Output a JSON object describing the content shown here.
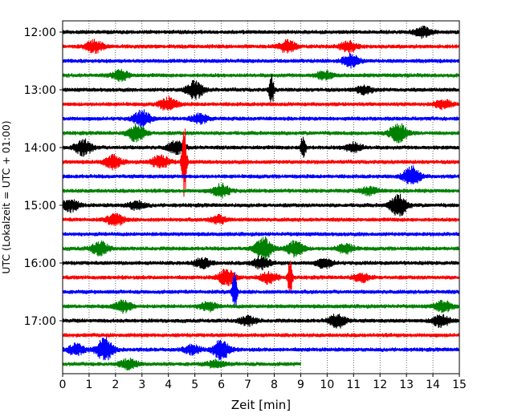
{
  "chart_data": {
    "type": "line",
    "title": "",
    "xlabel": "Zeit  [min]",
    "ylabel": "UTC (Lokalzeit = UTC + 01:00)",
    "xlim": [
      0,
      15
    ],
    "x_ticks": [
      0,
      1,
      2,
      3,
      4,
      5,
      6,
      7,
      8,
      9,
      10,
      11,
      12,
      13,
      14,
      15
    ],
    "y_tick_labels": [
      "12:00",
      "13:00",
      "14:00",
      "15:00",
      "16:00",
      "17:00"
    ],
    "grid": "vertical dotted lines at each minute",
    "legend": "none",
    "colors_cycle": [
      "#000000",
      "#ff0000",
      "#0000ff",
      "#008000"
    ],
    "traces": [
      {
        "start": "12:00",
        "color": "#000000",
        "end_min": 15,
        "events": [
          [
            13.6,
            1.0
          ]
        ]
      },
      {
        "start": "12:15",
        "color": "#ff0000",
        "end_min": 15,
        "events": [
          [
            1.2,
            1.2
          ],
          [
            8.5,
            1.2
          ],
          [
            10.8,
            1.0
          ]
        ]
      },
      {
        "start": "12:30",
        "color": "#0000ff",
        "end_min": 15,
        "events": [
          [
            10.9,
            1.3
          ]
        ]
      },
      {
        "start": "12:45",
        "color": "#008000",
        "end_min": 15,
        "events": [
          [
            2.2,
            1.0
          ],
          [
            9.9,
            0.8
          ]
        ]
      },
      {
        "start": "13:00",
        "color": "#000000",
        "end_min": 15,
        "events": [
          [
            5.0,
            1.8
          ],
          [
            7.9,
            3.2
          ],
          [
            11.4,
            0.8
          ]
        ]
      },
      {
        "start": "13:15",
        "color": "#ff0000",
        "end_min": 15,
        "events": [
          [
            4.0,
            1.4
          ],
          [
            14.4,
            0.8
          ]
        ]
      },
      {
        "start": "13:30",
        "color": "#0000ff",
        "end_min": 15,
        "events": [
          [
            3.0,
            1.6
          ],
          [
            5.2,
            0.9
          ]
        ]
      },
      {
        "start": "13:45",
        "color": "#008000",
        "end_min": 15,
        "events": [
          [
            2.8,
            1.7
          ],
          [
            12.7,
            2.0
          ]
        ]
      },
      {
        "start": "14:00",
        "color": "#000000",
        "end_min": 15,
        "events": [
          [
            0.8,
            1.6
          ],
          [
            4.3,
            1.3
          ],
          [
            9.1,
            3.0
          ],
          [
            11.0,
            0.9
          ]
        ]
      },
      {
        "start": "14:15",
        "color": "#ff0000",
        "end_min": 15,
        "events": [
          [
            1.9,
            1.3
          ],
          [
            3.7,
            1.4
          ],
          [
            4.6,
            7.5
          ]
        ]
      },
      {
        "start": "14:30",
        "color": "#0000ff",
        "end_min": 15,
        "events": [
          [
            13.2,
            2.0
          ]
        ]
      },
      {
        "start": "14:45",
        "color": "#008000",
        "end_min": 15,
        "events": [
          [
            6.0,
            1.3
          ],
          [
            11.6,
            0.8
          ]
        ]
      },
      {
        "start": "15:00",
        "color": "#000000",
        "end_min": 15,
        "events": [
          [
            0.3,
            1.2
          ],
          [
            2.8,
            0.8
          ],
          [
            12.7,
            2.2
          ]
        ]
      },
      {
        "start": "15:15",
        "color": "#ff0000",
        "end_min": 15,
        "events": [
          [
            2.0,
            1.2
          ],
          [
            5.9,
            0.8
          ]
        ]
      },
      {
        "start": "15:30",
        "color": "#0000ff",
        "end_min": 15,
        "events": []
      },
      {
        "start": "15:45",
        "color": "#008000",
        "end_min": 15,
        "events": [
          [
            1.4,
            1.4
          ],
          [
            7.6,
            2.3
          ],
          [
            8.8,
            1.6
          ],
          [
            10.7,
            0.9
          ]
        ]
      },
      {
        "start": "16:00",
        "color": "#000000",
        "end_min": 15,
        "events": [
          [
            5.3,
            1.0
          ],
          [
            7.5,
            1.2
          ],
          [
            9.9,
            0.9
          ]
        ]
      },
      {
        "start": "16:15",
        "color": "#ff0000",
        "end_min": 15,
        "events": [
          [
            6.2,
            1.6
          ],
          [
            7.8,
            1.1
          ],
          [
            8.6,
            3.5
          ],
          [
            11.3,
            0.8
          ]
        ]
      },
      {
        "start": "16:30",
        "color": "#0000ff",
        "end_min": 15,
        "events": [
          [
            6.5,
            4.5
          ]
        ]
      },
      {
        "start": "16:45",
        "color": "#008000",
        "end_min": 15,
        "events": [
          [
            2.3,
            1.2
          ],
          [
            5.5,
            0.9
          ],
          [
            14.4,
            1.1
          ]
        ]
      },
      {
        "start": "17:00",
        "color": "#000000",
        "end_min": 15,
        "events": [
          [
            7.0,
            0.9
          ],
          [
            10.4,
            1.4
          ],
          [
            14.3,
            1.3
          ]
        ]
      },
      {
        "start": "17:15",
        "color": "#ff0000",
        "end_min": 15,
        "events": []
      },
      {
        "start": "17:30",
        "color": "#0000ff",
        "end_min": 15,
        "events": [
          [
            0.5,
            1.1
          ],
          [
            1.6,
            2.3
          ],
          [
            4.9,
            0.9
          ],
          [
            6.0,
            2.0
          ]
        ]
      },
      {
        "start": "17:45",
        "color": "#008000",
        "end_min": 9.0,
        "events": [
          [
            2.5,
            1.0
          ],
          [
            5.8,
            0.7
          ]
        ]
      }
    ]
  }
}
